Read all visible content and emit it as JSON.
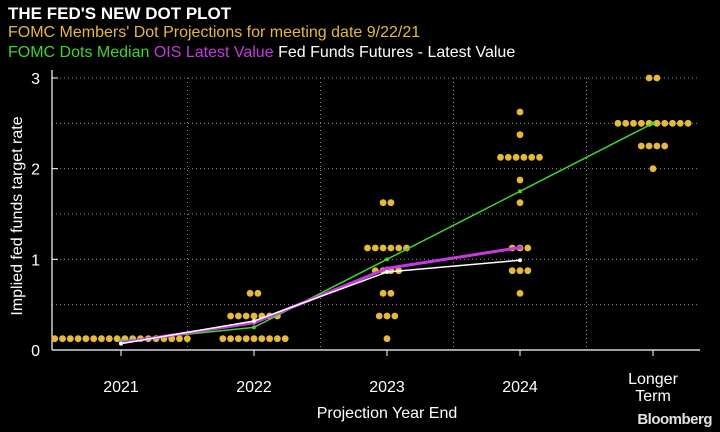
{
  "header": {
    "title": "THE FED'S NEW DOT PLOT",
    "subtitle_dots": "FOMC Members' Dot Projections for meeting date 9/22/21",
    "legend_median": "FOMC Dots Median",
    "legend_ois": "OIS Latest Value",
    "legend_futures": "Fed Funds Futures - Latest Value"
  },
  "brand": "Bloomberg",
  "colors": {
    "dots": "#e6b93a",
    "median": "#3fd431",
    "ois": "#c43ae0",
    "futures": "#ffffff",
    "grid": "#8a8a8a",
    "text": "#ffffff"
  },
  "chart_data": {
    "type": "scatter",
    "title": "THE FED'S NEW DOT PLOT",
    "xlabel": "Projection Year End",
    "ylabel": "Implied fed funds target rate",
    "categories": [
      "2021",
      "2022",
      "2023",
      "2024",
      "Longer Term"
    ],
    "yticks": [
      0,
      1,
      2,
      3
    ],
    "ylim": [
      0,
      3
    ],
    "grid": true,
    "dots": [
      {
        "category": "2021",
        "values": [
          0.125,
          0.125,
          0.125,
          0.125,
          0.125,
          0.125,
          0.125,
          0.125,
          0.125,
          0.125,
          0.125,
          0.125,
          0.125,
          0.125,
          0.125,
          0.125,
          0.125,
          0.125
        ]
      },
      {
        "category": "2022",
        "values": [
          0.625,
          0.625,
          0.375,
          0.375,
          0.375,
          0.375,
          0.375,
          0.375,
          0.375,
          0.125,
          0.125,
          0.125,
          0.125,
          0.125,
          0.125,
          0.125,
          0.125,
          0.125
        ]
      },
      {
        "category": "2023",
        "values": [
          1.625,
          1.625,
          1.125,
          1.125,
          1.125,
          1.125,
          1.125,
          1.125,
          0.875,
          0.875,
          0.875,
          0.875,
          0.625,
          0.625,
          0.375,
          0.375,
          0.375,
          0.125
        ]
      },
      {
        "category": "2024",
        "values": [
          2.625,
          2.375,
          2.125,
          2.125,
          2.125,
          2.125,
          2.125,
          2.125,
          1.875,
          1.625,
          1.125,
          1.125,
          1.125,
          0.875,
          0.875,
          0.875,
          0.625
        ]
      },
      {
        "category": "Longer Term",
        "values": [
          3.0,
          3.0,
          2.5,
          2.5,
          2.5,
          2.5,
          2.5,
          2.5,
          2.5,
          2.5,
          2.5,
          2.5,
          2.25,
          2.25,
          2.25,
          2.25,
          2.0
        ]
      }
    ],
    "series": [
      {
        "name": "FOMC Dots Median",
        "color": "#3fd431",
        "x": [
          "2021",
          "2022",
          "2023",
          "2024",
          "Longer Term"
        ],
        "values": [
          0.1,
          0.25,
          1.0,
          1.75,
          2.5
        ]
      },
      {
        "name": "OIS Latest Value",
        "color": "#c43ae0",
        "x": [
          "2021",
          "2022",
          "2023",
          "2024"
        ],
        "values": [
          0.08,
          0.3,
          0.9,
          1.13
        ]
      },
      {
        "name": "Fed Funds Futures - Latest Value",
        "color": "#ffffff",
        "x": [
          "2021",
          "2022",
          "2023",
          "2024"
        ],
        "values": [
          0.07,
          0.32,
          0.86,
          0.99
        ]
      }
    ]
  }
}
